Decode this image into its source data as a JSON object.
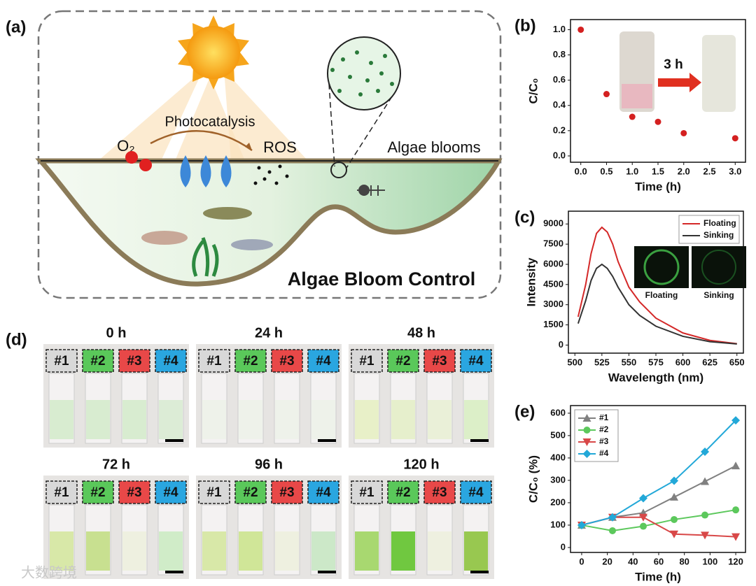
{
  "panel_a": {
    "label": "(a)",
    "photocatalysis": "Photocatalysis",
    "o2": "O₂",
    "ros": "ROS",
    "algae_blooms": "Algae blooms",
    "title": "Algae Bloom Control"
  },
  "panel_d": {
    "label": "(d)",
    "times": [
      "0 h",
      "24 h",
      "48 h",
      "72 h",
      "96 h",
      "120 h"
    ],
    "tags": [
      "#1",
      "#2",
      "#3",
      "#4"
    ]
  },
  "watermark": "大数跨境",
  "chart_data": [
    {
      "type": "scatter",
      "panel_label": "(b)",
      "xlabel": "Time (h)",
      "ylabel": "C/C₀",
      "annotation": "3 h",
      "color": "#d42020",
      "x": [
        0,
        0.5,
        1.0,
        1.5,
        2.0,
        3.0
      ],
      "values": [
        1.0,
        0.49,
        0.31,
        0.27,
        0.18,
        0.14
      ],
      "xlim": [
        -0.2,
        3.2
      ],
      "ylim": [
        -0.05,
        1.08
      ],
      "xticks": [
        {
          "value": 0,
          "label": "0.0"
        },
        0.5,
        {
          "value": 1,
          "label": "1.0"
        },
        1.5,
        {
          "value": 2,
          "label": "2.0"
        },
        2.5,
        {
          "value": 3,
          "label": "3.0"
        }
      ],
      "yticks": [
        {
          "value": 0,
          "label": "0.0"
        },
        0.2,
        0.4,
        0.6,
        0.8,
        {
          "value": 1,
          "label": "1.0"
        }
      ]
    },
    {
      "type": "line",
      "panel_label": "(c)",
      "xlabel": "Wavelength (nm)",
      "ylabel": "Intensity",
      "legend": "upper right",
      "insets": [
        "Floating",
        "Sinking"
      ],
      "x": [
        503,
        510,
        515,
        520,
        525,
        530,
        535,
        540,
        550,
        560,
        575,
        600,
        625,
        650
      ],
      "series": [
        {
          "name": "Floating",
          "color": "#d42828",
          "values": [
            2100,
            4500,
            6800,
            8300,
            8750,
            8400,
            7500,
            6200,
            4300,
            3200,
            2000,
            900,
            350,
            100
          ]
        },
        {
          "name": "Sinking",
          "color": "#333333",
          "values": [
            1600,
            3300,
            4800,
            5700,
            6000,
            5700,
            5100,
            4300,
            3000,
            2200,
            1400,
            650,
            250,
            80
          ]
        }
      ],
      "xlim": [
        494,
        656
      ],
      "ylim": [
        -600,
        9950
      ],
      "xticks": [
        500,
        525,
        550,
        575,
        600,
        625,
        650
      ],
      "yticks": [
        0,
        1500,
        3000,
        4500,
        6000,
        7500,
        9000
      ]
    },
    {
      "type": "line",
      "panel_label": "(e)",
      "xlabel": "Time (h)",
      "ylabel": "C/C₀ (%)",
      "legend": "upper left",
      "x": [
        0,
        24,
        48,
        72,
        96,
        120
      ],
      "series": [
        {
          "name": "#1",
          "color": "#808080",
          "marker": "triangle",
          "values": [
            100,
            135,
            155,
            225,
            295,
            365
          ]
        },
        {
          "name": "#2",
          "color": "#5cc85c",
          "marker": "circle",
          "values": [
            100,
            75,
            95,
            125,
            145,
            168
          ]
        },
        {
          "name": "#3",
          "color": "#d84848",
          "marker": "triangle-down",
          "values": [
            100,
            135,
            135,
            60,
            55,
            48
          ]
        },
        {
          "name": "#4",
          "color": "#22a8d8",
          "marker": "diamond",
          "values": [
            100,
            135,
            220,
            298,
            428,
            568
          ]
        }
      ],
      "xlim": [
        -8.7,
        127.6
      ],
      "ylim": [
        -22,
        634
      ],
      "xticks": [
        0,
        20,
        40,
        60,
        80,
        100,
        120
      ],
      "yticks": [
        0,
        100,
        200,
        300,
        400,
        500,
        600
      ]
    }
  ]
}
